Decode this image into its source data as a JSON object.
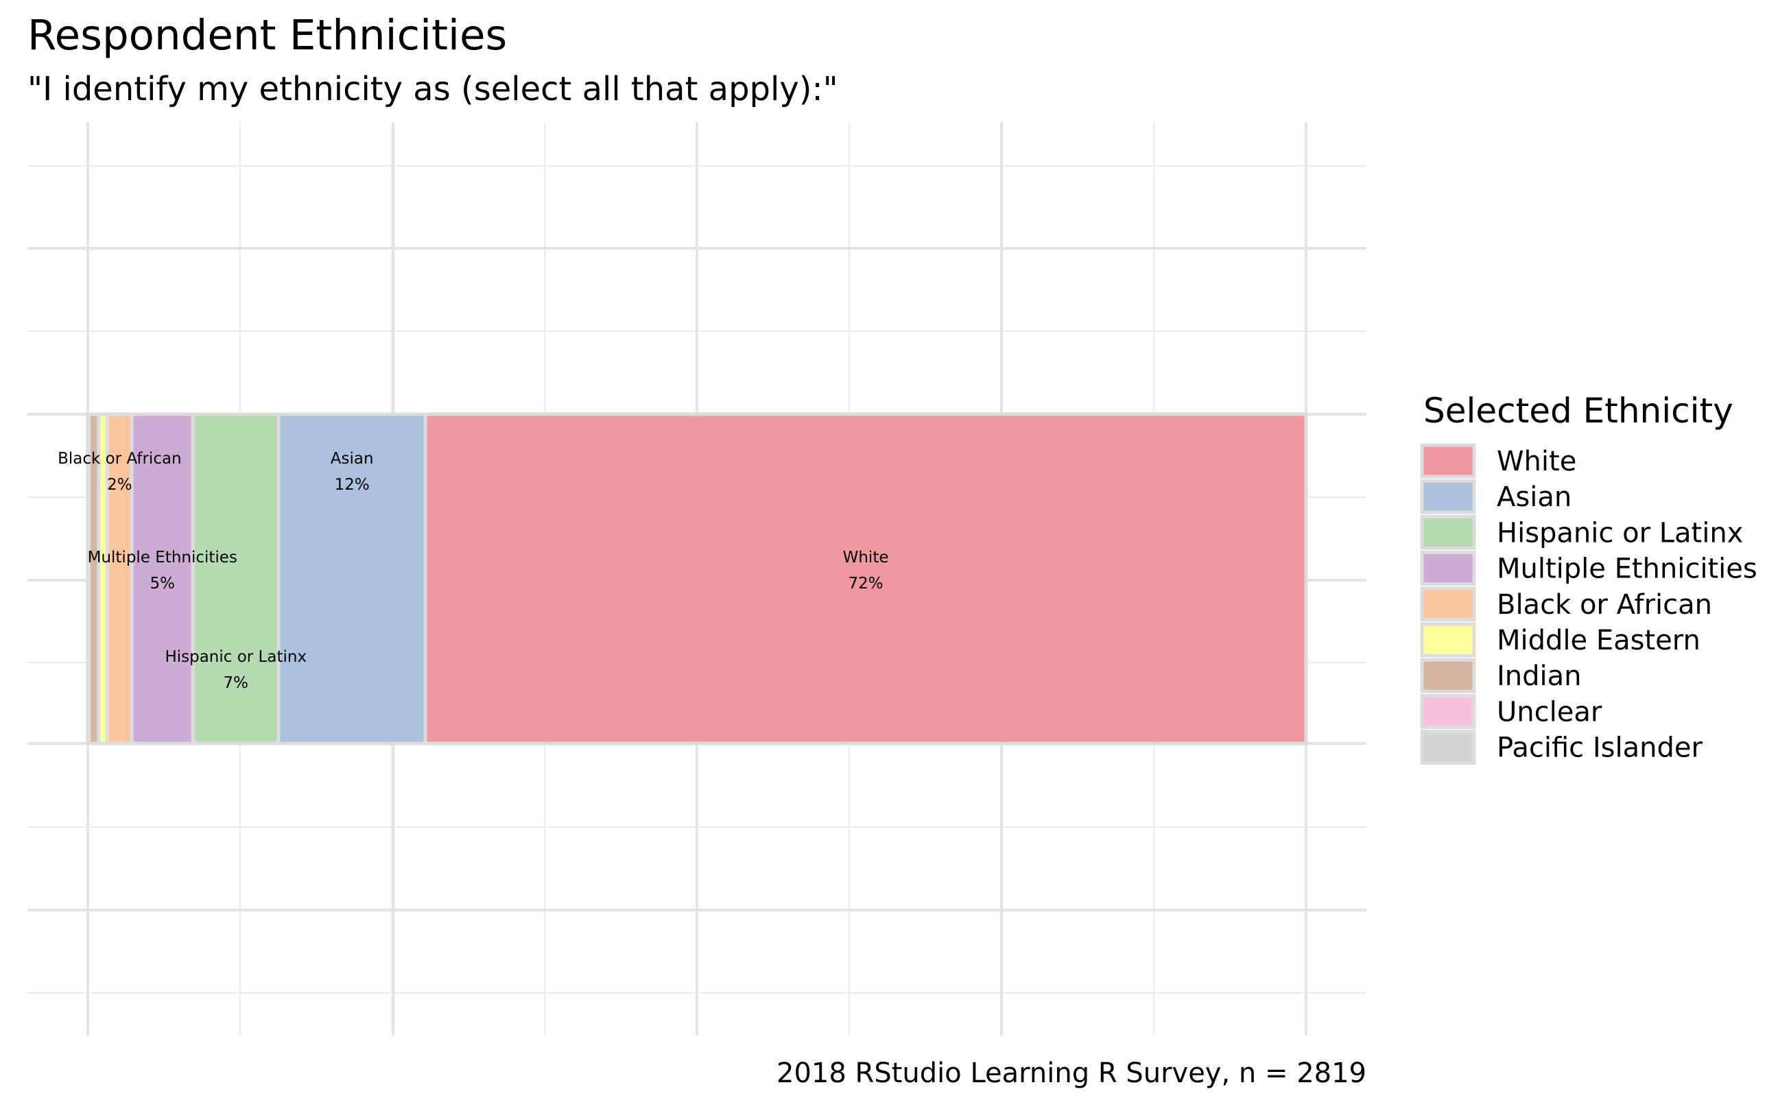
{
  "chart_data": {
    "type": "treemap",
    "title": "Respondent Ethnicities",
    "subtitle": "\"I identify my ethnicity as (select all that apply):\"",
    "caption": "2018 RStudio Learning R Survey, n = 2819",
    "legend": {
      "title": "Selected Ethnicity",
      "position": "right"
    },
    "grid": true,
    "series": [
      {
        "name": "White",
        "value": 72,
        "label": "White",
        "value_label": "72%",
        "color": "#f0989f"
      },
      {
        "name": "Asian",
        "value": 12,
        "label": "Asian",
        "value_label": "12%",
        "color": "#abc1dd"
      },
      {
        "name": "Hispanic or Latinx",
        "value": 7,
        "label": "Hispanic or Latinx",
        "value_label": "7%",
        "color": "#b3dab0"
      },
      {
        "name": "Multiple Ethnicities",
        "value": 5,
        "label": "Multiple Ethnicities",
        "value_label": "5%",
        "color": "#cdacd3"
      },
      {
        "name": "Black or African",
        "value": 2,
        "label": "Black or African",
        "value_label": "2%",
        "color": "#fdc59c"
      },
      {
        "name": "Middle Eastern",
        "value": 0.7,
        "label": "",
        "value_label": "",
        "color": "#ffff9e"
      },
      {
        "name": "Indian",
        "value": 0.8,
        "label": "",
        "value_label": "",
        "color": "#d5b4a3"
      },
      {
        "name": "Unclear",
        "value": 0.05,
        "label": "",
        "value_label": "",
        "color": "#f8c0de"
      },
      {
        "name": "Pacific Islander",
        "value": 0.05,
        "label": "",
        "value_label": "",
        "color": "#d3d3d3"
      }
    ]
  }
}
